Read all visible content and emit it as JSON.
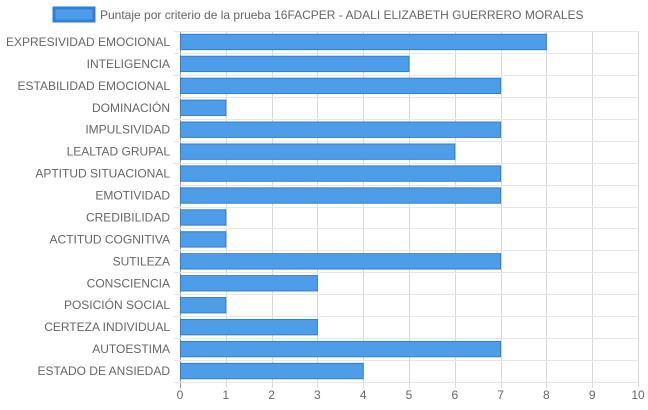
{
  "chart_data": {
    "type": "bar",
    "orientation": "horizontal",
    "categories": [
      "EXPRESIVIDAD EMOCIONAL",
      "INTELIGENCIA",
      "ESTABILIDAD EMOCIONAL",
      "DOMINACIÓN",
      "IMPULSIVIDAD",
      "LEALTAD GRUPAL",
      "APTITUD SITUACIONAL",
      "EMOTIVIDAD",
      "CREDIBILIDAD",
      "ACTITUD COGNITIVA",
      "SUTILEZA",
      "CONSCIENCIA",
      "POSICIÓN SOCIAL",
      "CERTEZA INDIVIDUAL",
      "AUTOESTIMA",
      "ESTADO DE ANSIEDAD"
    ],
    "series": [
      {
        "name": "Puntaje por criterio de la prueba 16FACPER - ADALI ELIZABETH GUERRERO MORALES",
        "values": [
          8,
          5,
          7,
          1,
          7,
          6,
          7,
          7,
          1,
          1,
          7,
          3,
          1,
          3,
          7,
          4
        ],
        "color": "#4e9de8",
        "border_color": "#2f7fd6"
      }
    ],
    "xlim": [
      0,
      10
    ],
    "x_ticks": [
      0,
      1,
      2,
      3,
      4,
      5,
      6,
      7,
      8,
      9,
      10
    ],
    "grid": true,
    "legend_position": "top-center",
    "title": "",
    "xlabel": "",
    "ylabel": ""
  }
}
